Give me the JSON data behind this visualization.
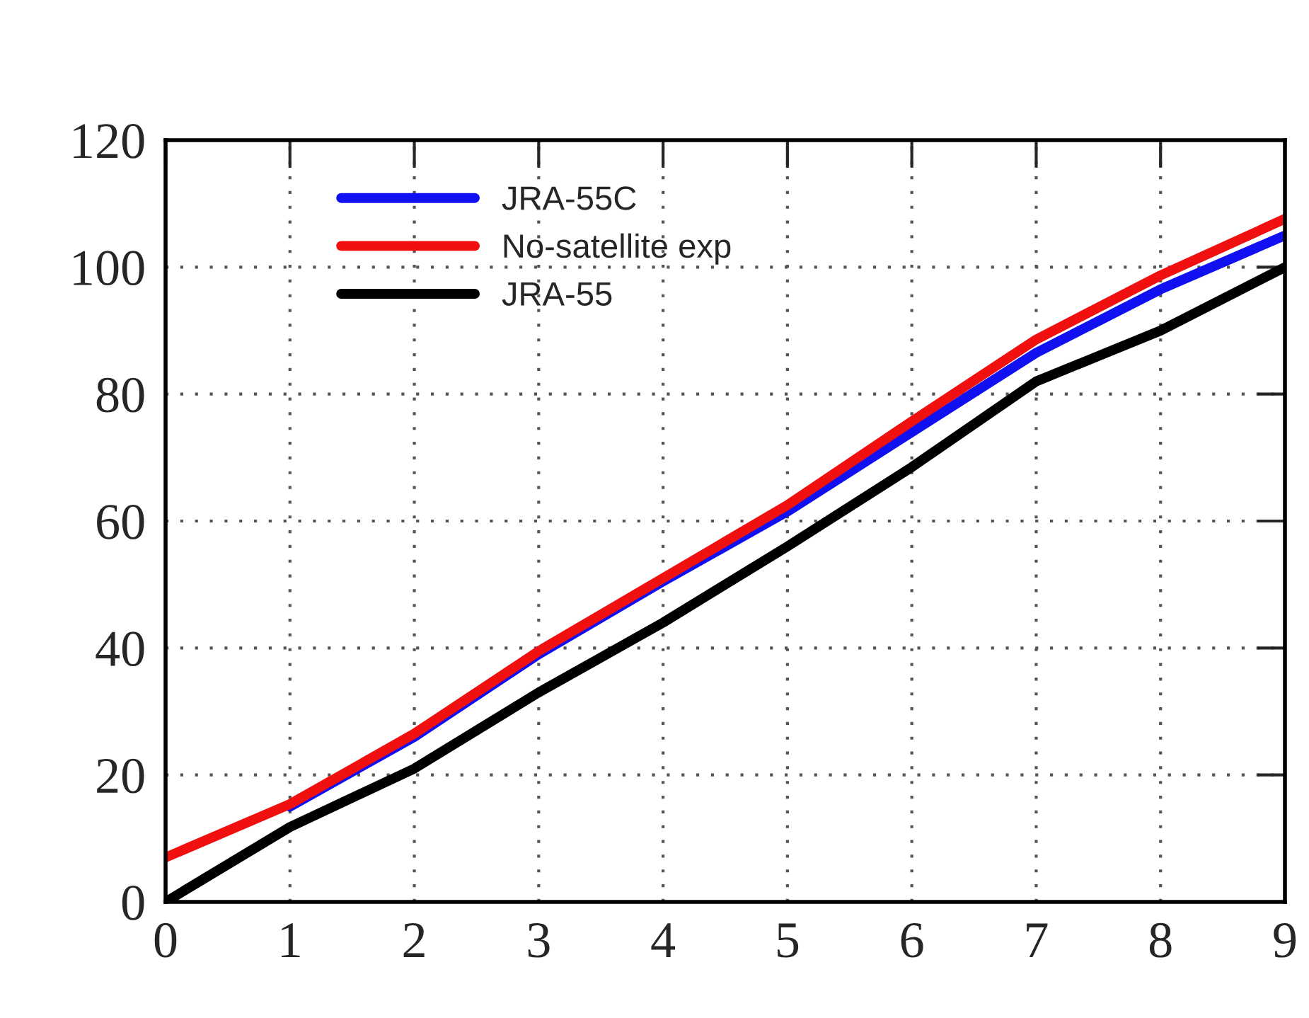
{
  "chart_data": {
    "type": "line",
    "x": [
      0,
      1,
      2,
      3,
      4,
      5,
      6,
      7,
      8,
      9
    ],
    "series": [
      {
        "name": "JRA-55C",
        "color": "#1010f0",
        "values": [
          null,
          15,
          26,
          39,
          50.5,
          61.5,
          74,
          86.5,
          96.5,
          105
        ]
      },
      {
        "name": "No-satellite exp",
        "color": "#f01010",
        "values": [
          7,
          15.4,
          26.5,
          39.5,
          51,
          62.5,
          75.7,
          88.6,
          98.7,
          107.6
        ]
      },
      {
        "name": "JRA-55",
        "color": "#000000",
        "values": [
          0,
          11.8,
          21,
          33,
          44,
          56,
          68.5,
          82,
          90,
          100
        ]
      }
    ],
    "xlim": [
      0,
      9
    ],
    "xticks": [
      0,
      1,
      2,
      3,
      4,
      5,
      6,
      7,
      8,
      9
    ],
    "ylim": [
      0,
      120
    ],
    "yticks": [
      0,
      20,
      40,
      60,
      80,
      100,
      120
    ],
    "grid": true,
    "legend": "top left",
    "line_style": "solid"
  }
}
